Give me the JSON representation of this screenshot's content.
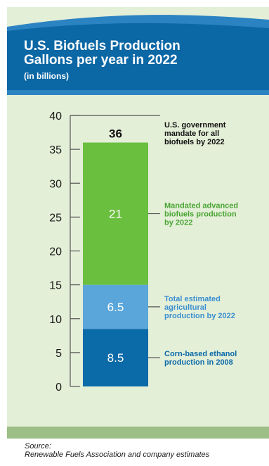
{
  "header": {
    "title": "U.S. Biofuels Production\nGallons per year in 2022",
    "subtitle": "(in billions)"
  },
  "chart_data": {
    "type": "bar",
    "stacked": true,
    "ylim": [
      0,
      40
    ],
    "y_ticks": [
      "0",
      "5",
      "10",
      "15",
      "20",
      "25",
      "30",
      "35",
      "40"
    ],
    "segments": [
      {
        "value": 8.5,
        "label": "8.5",
        "annotation": "Corn-based ethanol\nproduction in 2008",
        "color": "#0b6aa8",
        "text_color": "#0b6aa8"
      },
      {
        "value": 6.5,
        "label": "6.5",
        "annotation": "Total estimated\nagricultural\nproduction by 2022",
        "color": "#5aa6da",
        "text_color": "#3a8fd0"
      },
      {
        "value": 21,
        "label": "21",
        "annotation": "Mandated advanced\nbiofuels production\nby 2022",
        "color": "#6bbf3f",
        "text_color": "#4aa534"
      }
    ],
    "total": {
      "value": 36,
      "label": "36",
      "annotation": "U.S. government\nmandate for all\nbiofuels by 2022"
    },
    "grid": false
  },
  "footer": {
    "source_label": "Source:",
    "source_text": "Renewable Fuels Association and company estimates"
  },
  "colors": {
    "header_blue": "#0c67a5",
    "header_band": "#2c83c2",
    "panel": "#e4efd8",
    "strip": "#9bbf86"
  }
}
